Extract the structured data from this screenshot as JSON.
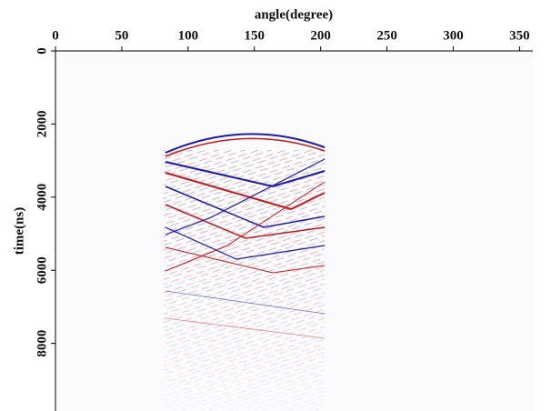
{
  "chart_data": {
    "type": "image",
    "title": "angle(degree)",
    "y_label": "time(ns)",
    "xlim": [
      0,
      360
    ],
    "xticks": [
      0,
      50,
      100,
      150,
      200,
      250,
      300,
      350
    ],
    "ylim": [
      0,
      9850
    ],
    "yticks": [
      0,
      2000,
      4000,
      6000,
      8000
    ],
    "x_axis_position": "top",
    "y_reversed": true
  }
}
